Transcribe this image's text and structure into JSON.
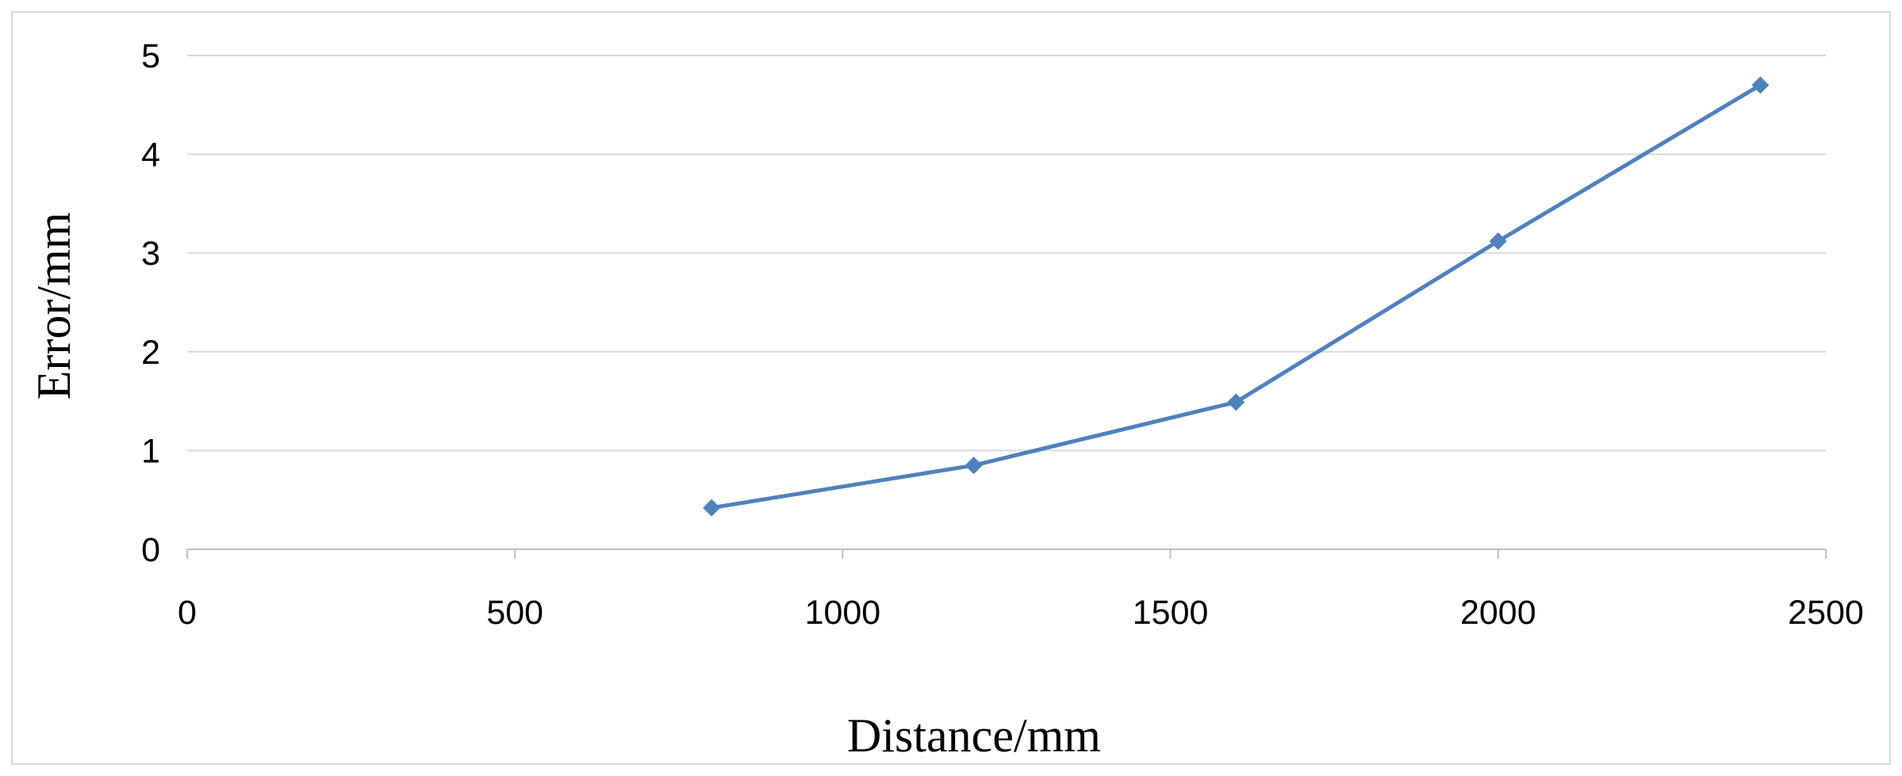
{
  "chart_data": {
    "type": "line",
    "title": "",
    "xlabel": "Distance/mm",
    "ylabel": "Error/mm",
    "xlim": [
      0,
      2500
    ],
    "ylim": [
      0,
      5
    ],
    "x_ticks": [
      "0",
      "500",
      "1000",
      "1500",
      "2000",
      "2500"
    ],
    "y_ticks": [
      "0",
      "1",
      "2",
      "3",
      "4",
      "5"
    ],
    "grid": "horizontal",
    "legend": "none",
    "marker": "diamond",
    "color": "#4f81bd",
    "series": [
      {
        "x": [
          800,
          1200,
          1600,
          2000,
          2400
        ],
        "y": [
          0.42,
          0.85,
          1.49,
          3.12,
          4.7
        ]
      }
    ]
  }
}
